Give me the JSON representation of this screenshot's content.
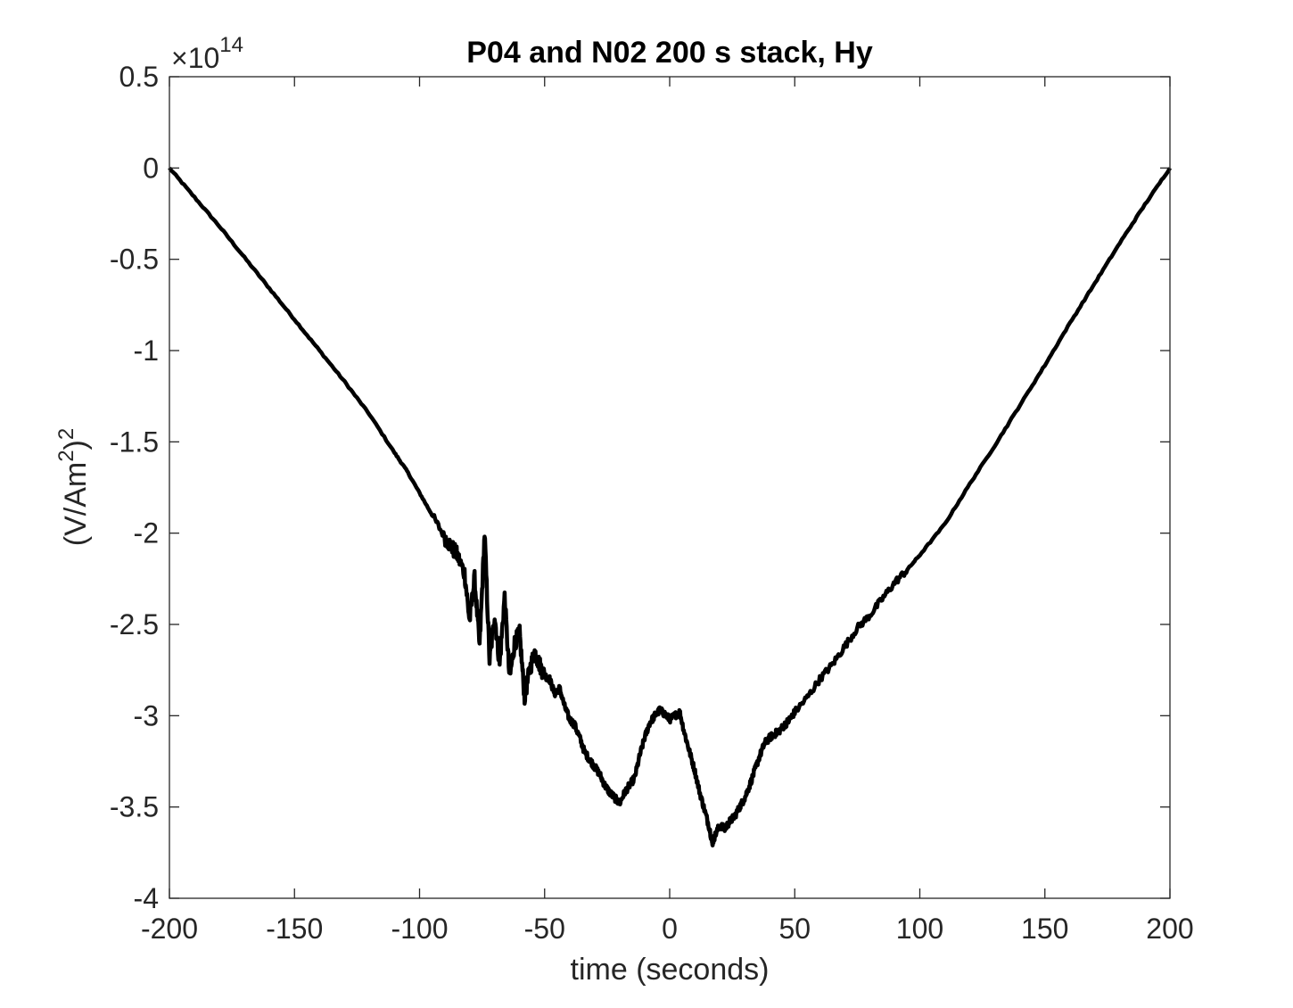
{
  "chart_data": {
    "type": "line",
    "title": "P04 and N02 200 s stack, Hy",
    "xlabel": "time (seconds)",
    "ylabel_main": "(V/Am",
    "ylabel_sup1": "2",
    "ylabel_close": ")",
    "ylabel_sup2": "2",
    "y_exponent_base": "×10",
    "y_exponent_power": "14",
    "xlim": [
      -200,
      200
    ],
    "ylim": [
      -4,
      0.5
    ],
    "y_scale_factor": 100000000000000.0,
    "grid": false,
    "x_ticks": [
      -200,
      -150,
      -100,
      -50,
      0,
      50,
      100,
      150,
      200
    ],
    "x_tick_labels": [
      "-200",
      "-150",
      "-100",
      "-50",
      "0",
      "50",
      "100",
      "150",
      "200"
    ],
    "y_ticks": [
      0.5,
      0,
      -0.5,
      -1,
      -1.5,
      -2,
      -2.5,
      -3,
      -3.5,
      -4
    ],
    "y_tick_labels": [
      "0.5",
      "0",
      "-0.5",
      "-1",
      "-1.5",
      "-2",
      "-2.5",
      "-3",
      "-3.5",
      "-4"
    ],
    "line_color": "#000000",
    "series": [
      {
        "x": [
          -200,
          -190,
          -180,
          -170,
          -160,
          -150,
          -140,
          -130,
          -120,
          -110,
          -105,
          -100,
          -95,
          -90,
          -87,
          -85,
          -82,
          -80,
          -78,
          -76,
          -74,
          -72,
          -70,
          -68,
          -66,
          -64,
          -62,
          -60,
          -58,
          -56,
          -54,
          -52,
          -50,
          -48,
          -46,
          -44,
          -42,
          -40,
          -38,
          -36,
          -34,
          -32,
          -30,
          -28,
          -26,
          -24,
          -22,
          -20,
          -18,
          -16,
          -14,
          -12,
          -10,
          -8,
          -6,
          -4,
          -2,
          0,
          2,
          4,
          6,
          8,
          10,
          12,
          14,
          16,
          17,
          18,
          20,
          22,
          24,
          26,
          28,
          30,
          32,
          34,
          36,
          38,
          40,
          42,
          44,
          46,
          48,
          50,
          55,
          60,
          65,
          70,
          75,
          80,
          85,
          90,
          95,
          100,
          110,
          120,
          130,
          140,
          150,
          160,
          170,
          180,
          190,
          200
        ],
        "y": [
          0,
          -0.16,
          -0.32,
          -0.49,
          -0.66,
          -0.83,
          -1.0,
          -1.17,
          -1.35,
          -1.56,
          -1.66,
          -1.78,
          -1.9,
          -2.02,
          -2.08,
          -2.12,
          -2.22,
          -2.48,
          -2.25,
          -2.62,
          -2.0,
          -2.7,
          -2.45,
          -2.72,
          -2.35,
          -2.8,
          -2.6,
          -2.55,
          -2.9,
          -2.75,
          -2.65,
          -2.72,
          -2.78,
          -2.8,
          -2.88,
          -2.85,
          -2.95,
          -3.02,
          -3.05,
          -3.12,
          -3.2,
          -3.24,
          -3.28,
          -3.32,
          -3.38,
          -3.42,
          -3.45,
          -3.48,
          -3.42,
          -3.38,
          -3.34,
          -3.22,
          -3.12,
          -3.04,
          -3.0,
          -2.97,
          -2.99,
          -3.02,
          -3.0,
          -2.98,
          -3.1,
          -3.2,
          -3.3,
          -3.42,
          -3.52,
          -3.62,
          -3.7,
          -3.66,
          -3.6,
          -3.62,
          -3.58,
          -3.55,
          -3.5,
          -3.45,
          -3.38,
          -3.3,
          -3.22,
          -3.15,
          -3.12,
          -3.1,
          -3.08,
          -3.05,
          -3.02,
          -2.98,
          -2.9,
          -2.8,
          -2.72,
          -2.62,
          -2.52,
          -2.45,
          -2.36,
          -2.27,
          -2.2,
          -2.12,
          -1.95,
          -1.73,
          -1.52,
          -1.3,
          -1.08,
          -0.85,
          -0.63,
          -0.41,
          -0.2,
          0
        ]
      }
    ]
  }
}
